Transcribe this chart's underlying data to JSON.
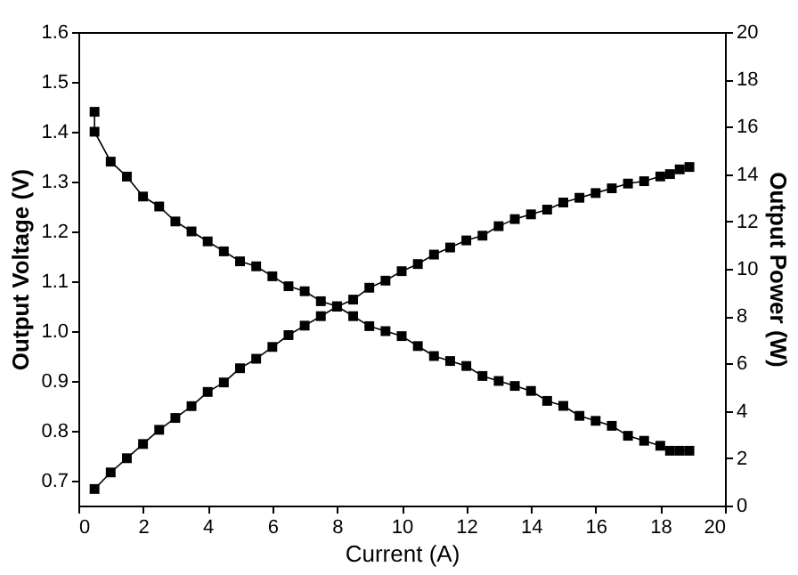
{
  "chart_data": {
    "type": "line",
    "xlabel": "Current (A)",
    "ylabel": "Output Voltage (V)",
    "y2label": "Output Power (W)",
    "xlim": [
      0,
      20
    ],
    "xticks": [
      0,
      2,
      4,
      6,
      8,
      10,
      12,
      14,
      16,
      18,
      20
    ],
    "ylim": [
      0.65,
      1.6
    ],
    "yticks": [
      0.7,
      0.8,
      0.9,
      {
        "value": 1.0,
        "label": "1.0"
      },
      1.1,
      1.2,
      1.3,
      1.4,
      1.5,
      1.6
    ],
    "y2lim": [
      0,
      20
    ],
    "y2ticks": [
      0,
      2,
      4,
      6,
      8,
      10,
      12,
      14,
      16,
      18,
      20
    ],
    "grid": false,
    "marker": "square",
    "line_style": "solid",
    "series": [
      {
        "color": "#000000",
        "x": [
          0.5,
          0.5,
          1,
          1.5,
          2,
          2.5,
          3,
          3.5,
          4,
          4.5,
          5,
          5.5,
          6,
          6.5,
          7,
          7.5,
          8,
          8.5,
          9,
          9.5,
          10,
          10.5,
          11,
          11.5,
          12,
          12.5,
          13,
          13.5,
          14,
          14.5,
          15,
          15.5,
          16,
          16.5,
          17,
          17.5,
          18,
          18.3,
          18.6,
          18.9
        ],
        "values": [
          1.44,
          1.4,
          1.34,
          1.31,
          1.27,
          1.25,
          1.22,
          1.2,
          1.18,
          1.16,
          1.14,
          1.13,
          1.11,
          1.09,
          1.08,
          1.06,
          1.05,
          1.03,
          1.01,
          1.0,
          0.99,
          0.97,
          0.95,
          0.94,
          0.93,
          0.91,
          0.9,
          0.89,
          0.88,
          0.86,
          0.85,
          0.83,
          0.82,
          0.81,
          0.79,
          0.78,
          0.77,
          0.76,
          0.76,
          0.76
        ]
      },
      {
        "color": "#000000",
        "axis": "y2",
        "x": [
          0.5,
          1,
          1.5,
          2,
          2.5,
          3,
          3.5,
          4,
          4.5,
          5,
          5.5,
          6,
          6.5,
          7,
          7.5,
          8,
          8.5,
          9,
          9.5,
          10,
          10.5,
          11,
          11.5,
          12,
          12.5,
          13,
          13.5,
          14,
          14.5,
          15,
          15.5,
          16,
          16.5,
          17,
          17.5,
          18,
          18.3,
          18.6,
          18.9
        ],
        "values": [
          0.7,
          1.4,
          2.0,
          2.6,
          3.2,
          3.7,
          4.2,
          4.8,
          5.2,
          5.8,
          6.2,
          6.7,
          7.2,
          7.6,
          8.0,
          8.4,
          8.7,
          9.2,
          9.5,
          9.9,
          10.2,
          10.6,
          10.9,
          11.2,
          11.4,
          11.8,
          12.1,
          12.3,
          12.5,
          12.8,
          13.0,
          13.2,
          13.4,
          13.6,
          13.7,
          13.9,
          14.0,
          14.2,
          14.3
        ]
      }
    ]
  }
}
